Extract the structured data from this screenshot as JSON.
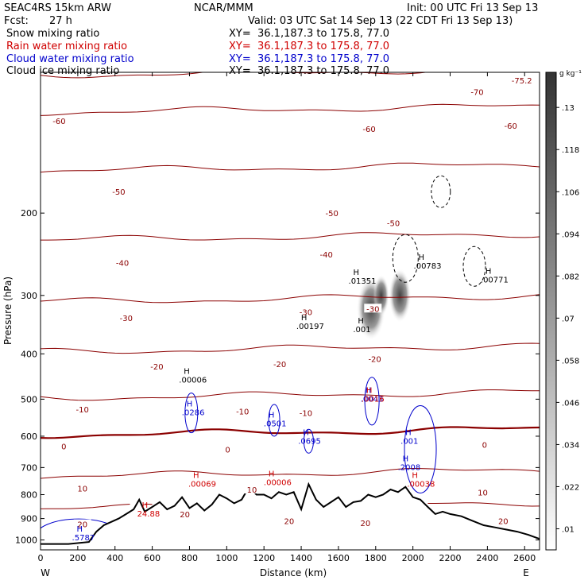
{
  "header": {
    "model": "SEAC4RS 15km ARW",
    "init": "Init: 00 UTC Fri 13 Sep 13",
    "org": "NCAR/MMM",
    "fcst_label": "Fcst:",
    "fcst_value": "27 h",
    "valid": "Valid: 03 UTC Sat 14 Sep 13 (22 CDT Fri 13 Sep 13)"
  },
  "fields": [
    {
      "name": "Snow mixing ratio",
      "xy": "XY=  36.1,187.3 to 175.8, 77.0",
      "color": "#000000"
    },
    {
      "name": "Rain water mixing ratio",
      "xy": "XY=  36.1,187.3 to 175.8, 77.0",
      "color": "#d00000"
    },
    {
      "name": "Cloud water mixing ratio",
      "xy": "XY=  36.1,187.3 to 175.8, 77.0",
      "color": "#0000cc"
    },
    {
      "name": "Cloud ice mixing ratio",
      "xy": "XY=  36.1,187.3 to 175.8, 77.0",
      "color": "#000000"
    }
  ],
  "chart_data": {
    "type": "contour",
    "xlabel": "Distance (km)",
    "ylabel": "Pressure (hPa)",
    "xlim": [
      0,
      2680
    ],
    "ylim": [
      1050,
      100
    ],
    "y_scale": "log",
    "x_ticks": [
      0,
      200,
      400,
      600,
      800,
      1000,
      1200,
      1400,
      1600,
      1800,
      2000,
      2200,
      2400,
      2600
    ],
    "y_ticks": [
      200,
      300,
      400,
      500,
      600,
      700,
      800,
      900,
      1000
    ],
    "x_end_labels": [
      "W",
      "E"
    ],
    "colorbar": {
      "unit": "g kg⁻¹",
      "ticks": [
        ".01",
        ".022",
        ".034",
        ".046",
        ".058",
        ".07",
        ".082",
        ".094",
        ".106",
        ".118",
        ".13"
      ],
      "values": [
        0.01,
        0.022,
        0.034,
        0.046,
        0.058,
        0.07,
        0.082,
        0.094,
        0.106,
        0.118,
        0.13
      ]
    },
    "temperature_contours_C": [
      {
        "level": -70,
        "p": 100
      },
      {
        "level": -60,
        "p": 120
      },
      {
        "level": -50,
        "p": 160
      },
      {
        "level": -40,
        "p": 225
      },
      {
        "level": -30,
        "p": 305
      },
      {
        "level": -20,
        "p": 390
      },
      {
        "level": -10,
        "p": 490
      },
      {
        "level": 0,
        "p": 588
      },
      {
        "level": 10,
        "p": 720
      },
      {
        "level": 20,
        "p": 845
      }
    ],
    "contour_labels": [
      {
        "text": "-70",
        "x": 2345,
        "p": 110,
        "color": "#8b0000"
      },
      {
        "text": "-75.2",
        "x": 2585,
        "p": 104,
        "color": "#8b0000"
      },
      {
        "text": "-60",
        "x": 100,
        "p": 127,
        "color": "#8b0000"
      },
      {
        "text": "-60",
        "x": 1765,
        "p": 132,
        "color": "#8b0000"
      },
      {
        "text": "-60",
        "x": 2525,
        "p": 130,
        "color": "#8b0000"
      },
      {
        "text": "-50",
        "x": 420,
        "p": 180,
        "color": "#8b0000"
      },
      {
        "text": "-50",
        "x": 1565,
        "p": 200,
        "color": "#8b0000"
      },
      {
        "text": "-50",
        "x": 1895,
        "p": 210,
        "color": "#8b0000"
      },
      {
        "text": "-40",
        "x": 440,
        "p": 255,
        "color": "#8b0000"
      },
      {
        "text": "-40",
        "x": 1535,
        "p": 245,
        "color": "#8b0000"
      },
      {
        "text": "-30",
        "x": 460,
        "p": 335,
        "color": "#8b0000"
      },
      {
        "text": "-30",
        "x": 1425,
        "p": 325,
        "color": "#8b0000"
      },
      {
        "text": "-30",
        "x": 1785,
        "p": 320,
        "color": "#8b0000"
      },
      {
        "text": "-20",
        "x": 625,
        "p": 425,
        "color": "#8b0000"
      },
      {
        "text": "-20",
        "x": 1285,
        "p": 420,
        "color": "#8b0000"
      },
      {
        "text": "-20",
        "x": 1795,
        "p": 410,
        "color": "#8b0000"
      },
      {
        "text": "-10",
        "x": 225,
        "p": 525,
        "color": "#8b0000"
      },
      {
        "text": "-10",
        "x": 1085,
        "p": 530,
        "color": "#8b0000"
      },
      {
        "text": "-10",
        "x": 1425,
        "p": 535,
        "color": "#8b0000"
      },
      {
        "text": "0",
        "x": 125,
        "p": 630,
        "color": "#8b0000"
      },
      {
        "text": "0",
        "x": 1005,
        "p": 640,
        "color": "#8b0000"
      },
      {
        "text": "0",
        "x": 2385,
        "p": 625,
        "color": "#8b0000"
      },
      {
        "text": "10",
        "x": 225,
        "p": 775,
        "color": "#8b0000"
      },
      {
        "text": "10",
        "x": 1135,
        "p": 780,
        "color": "#8b0000"
      },
      {
        "text": "10",
        "x": 2375,
        "p": 790,
        "color": "#8b0000"
      },
      {
        "text": "20",
        "x": 775,
        "p": 880,
        "color": "#8b0000"
      },
      {
        "text": "20",
        "x": 1335,
        "p": 910,
        "color": "#8b0000"
      },
      {
        "text": "20",
        "x": 1745,
        "p": 920,
        "color": "#8b0000"
      },
      {
        "text": "20",
        "x": 2485,
        "p": 910,
        "color": "#8b0000"
      },
      {
        "text": "20",
        "x": 225,
        "p": 925,
        "color": "#8b0000"
      }
    ],
    "extrema_labels": [
      {
        "value": ".00006",
        "x": 795,
        "p": 455,
        "color": "#000000"
      },
      {
        "value": ".00197",
        "x": 1425,
        "p": 350,
        "color": "#000000"
      },
      {
        "value": ".01351",
        "x": 1705,
        "p": 280,
        "color": "#000000"
      },
      {
        "value": ".001",
        "x": 1730,
        "p": 355,
        "color": "#000000"
      },
      {
        "value": ".00783",
        "x": 2055,
        "p": 260,
        "color": "#000000"
      },
      {
        "value": ".00771",
        "x": 2415,
        "p": 278,
        "color": "#000000"
      },
      {
        "value": ".0286",
        "x": 810,
        "p": 535,
        "color": "#0000cc"
      },
      {
        "value": ".0501",
        "x": 1250,
        "p": 565,
        "color": "#0000cc"
      },
      {
        "value": ".0695",
        "x": 1435,
        "p": 615,
        "color": "#0000cc"
      },
      {
        "value": ".0043",
        "x": 1770,
        "p": 500,
        "color": "#0000cc"
      },
      {
        "value": ".0016",
        "x": 1775,
        "p": 500,
        "color": "#d00000"
      },
      {
        "value": ".001",
        "x": 1985,
        "p": 615,
        "color": "#0000cc"
      },
      {
        "value": ".2008",
        "x": 1970,
        "p": 700,
        "color": "#0000cc"
      },
      {
        "value": ".00038",
        "x": 2020,
        "p": 760,
        "color": "#d00000"
      },
      {
        "value": ".00069",
        "x": 845,
        "p": 760,
        "color": "#d00000"
      },
      {
        "value": ".00006",
        "x": 1250,
        "p": 755,
        "color": "#d00000"
      },
      {
        "value": "24.88",
        "x": 570,
        "p": 880,
        "color": "#d00000"
      },
      {
        "value": ".5787",
        "x": 220,
        "p": 990,
        "color": "#0000cc"
      }
    ],
    "terrain": {
      "x": [
        0,
        150,
        260,
        300,
        340,
        380,
        420,
        460,
        500,
        530,
        560,
        600,
        640,
        680,
        720,
        760,
        800,
        840,
        880,
        920,
        960,
        1000,
        1040,
        1080,
        1120,
        1160,
        1200,
        1240,
        1280,
        1320,
        1360,
        1400,
        1440,
        1480,
        1520,
        1560,
        1600,
        1640,
        1680,
        1720,
        1760,
        1800,
        1840,
        1880,
        1920,
        1960,
        2000,
        2040,
        2080,
        2120,
        2160,
        2200,
        2260,
        2320,
        2380,
        2440,
        2500,
        2560,
        2620,
        2680
      ],
      "p": [
        1020,
        1020,
        1010,
        960,
        930,
        915,
        900,
        880,
        860,
        820,
        870,
        850,
        830,
        860,
        845,
        810,
        855,
        835,
        865,
        840,
        800,
        815,
        835,
        820,
        770,
        800,
        800,
        815,
        790,
        800,
        790,
        860,
        760,
        820,
        850,
        830,
        810,
        850,
        830,
        825,
        800,
        810,
        800,
        780,
        790,
        770,
        810,
        820,
        850,
        880,
        870,
        880,
        890,
        910,
        930,
        940,
        950,
        960,
        975,
        995
      ]
    }
  }
}
